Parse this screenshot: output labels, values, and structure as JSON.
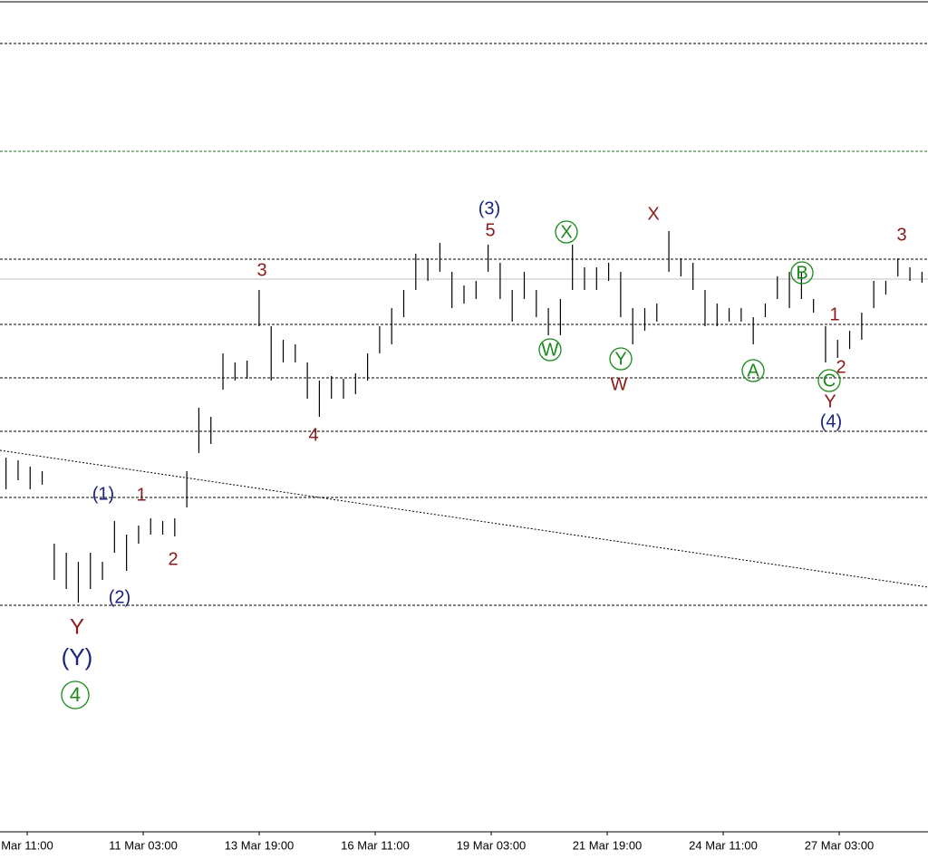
{
  "chart_data": {
    "type": "ohlc",
    "ylim": [
      0,
      918
    ],
    "color": "#000000",
    "high": [
      413,
      410,
      403,
      398,
      318,
      308,
      298,
      308,
      298,
      343,
      328,
      338,
      346,
      343,
      346,
      398,
      468,
      458,
      528,
      518,
      520,
      598,
      558,
      543,
      538,
      518,
      498,
      503,
      500,
      506,
      528,
      558,
      578,
      598,
      638,
      633,
      650,
      618,
      603,
      608,
      648,
      628,
      598,
      618,
      598,
      578,
      588,
      648,
      623,
      623,
      628,
      618,
      578,
      578,
      583,
      663,
      633,
      628,
      598,
      583,
      578,
      578,
      568,
      583,
      613,
      618,
      618,
      588,
      558,
      543,
      553,
      573,
      608,
      608,
      633,
      623,
      618
    ],
    "low": [
      378,
      388,
      378,
      383,
      278,
      268,
      253,
      268,
      278,
      308,
      288,
      318,
      328,
      328,
      326,
      358,
      418,
      428,
      488,
      498,
      500,
      558,
      498,
      518,
      518,
      478,
      458,
      478,
      478,
      483,
      498,
      528,
      538,
      568,
      598,
      608,
      618,
      578,
      583,
      588,
      618,
      588,
      563,
      588,
      568,
      548,
      548,
      598,
      598,
      598,
      608,
      568,
      538,
      553,
      563,
      618,
      613,
      598,
      558,
      558,
      563,
      563,
      538,
      568,
      588,
      578,
      588,
      573,
      518,
      523,
      533,
      543,
      578,
      593,
      613,
      608,
      606
    ],
    "levels": [
      870,
      751,
      632,
      560,
      501,
      442,
      369,
      250
    ],
    "level_colors": [
      "#000000",
      "#1a6b1a",
      "#000000",
      "#000000",
      "#000000",
      "#000000",
      "#000000",
      "#000000"
    ],
    "price_line": 610,
    "trendline": [
      421,
      270
    ],
    "categories": [
      "Mar 11:00",
      "11 Mar 03:00",
      "13 Mar 19:00",
      "16 Mar 11:00",
      "19 Mar 03:00",
      "21 Mar 19:00",
      "24 Mar 11:00",
      "27 Mar 03:00"
    ],
    "annotations": [
      {
        "text": "(3)",
        "color": "#1a237e"
      },
      {
        "text": "5",
        "color": "#8b1a1a"
      },
      {
        "text": "X",
        "color": "#1a8a1a"
      },
      {
        "text": "X",
        "color": "#8b1a1a"
      },
      {
        "text": "3",
        "color": "#8b1a1a"
      },
      {
        "text": "B",
        "color": "#1a8a1a"
      },
      {
        "text": "3",
        "color": "#8b1a1a"
      },
      {
        "text": "1",
        "color": "#8b1a1a"
      },
      {
        "text": "W",
        "color": "#1a8a1a"
      },
      {
        "text": "Y",
        "color": "#1a8a1a"
      },
      {
        "text": "W",
        "color": "#8b1a1a"
      },
      {
        "text": "A",
        "color": "#1a8a1a"
      },
      {
        "text": "2",
        "color": "#8b1a1a"
      },
      {
        "text": "C",
        "color": "#1a8a1a"
      },
      {
        "text": "Y",
        "color": "#8b1a1a"
      },
      {
        "text": "(4)",
        "color": "#1a237e"
      },
      {
        "text": "4",
        "color": "#8b1a1a"
      },
      {
        "text": "(1)",
        "color": "#1a237e"
      },
      {
        "text": "1",
        "color": "#8b1a1a"
      },
      {
        "text": "2",
        "color": "#8b1a1a"
      },
      {
        "text": "(2)",
        "color": "#1a237e"
      },
      {
        "text": "Y",
        "color": "#8b1a1a"
      },
      {
        "text": "(Y)",
        "color": "#1a237e"
      },
      {
        "text": "4",
        "color": "#1a8a1a"
      }
    ]
  }
}
